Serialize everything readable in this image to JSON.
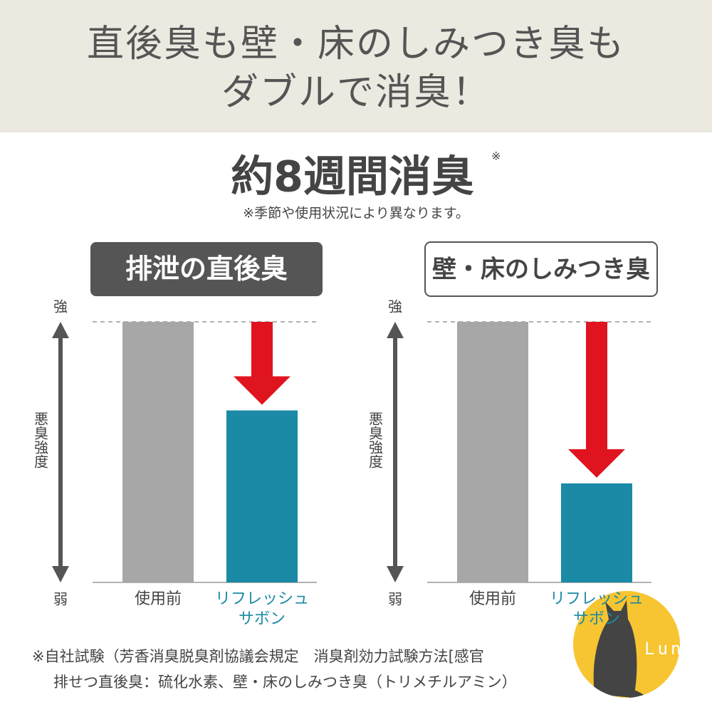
{
  "header": {
    "title": "直後臭も壁・床のしみつき臭も\nダブルで消臭！"
  },
  "headline": {
    "text": "約8週間消臭",
    "mark": "※",
    "note": "※季節や使用状況により異なります。"
  },
  "chart_data": [
    {
      "type": "bar",
      "title": "排泄の直後臭",
      "title_style": "dark",
      "categories": [
        "使用前",
        "リフレッシュ\nサボン"
      ],
      "values": [
        100,
        66
      ],
      "colors": [
        "#a7a7a7",
        "#1b8aa6"
      ],
      "ylabel": "悪臭強度",
      "ylim": [
        0,
        100
      ],
      "yticks": [
        {
          "value": 0,
          "label": "弱"
        },
        {
          "value": 100,
          "label": "強"
        }
      ]
    },
    {
      "type": "bar",
      "title": "壁・床のしみつき臭",
      "title_style": "light",
      "categories": [
        "使用前",
        "リフレッシュ\nサボン"
      ],
      "values": [
        100,
        38
      ],
      "colors": [
        "#a7a7a7",
        "#1b8aa6"
      ],
      "ylabel": "悪臭強度",
      "ylim": [
        0,
        100
      ],
      "yticks": [
        {
          "value": 0,
          "label": "弱"
        },
        {
          "value": 100,
          "label": "強"
        }
      ]
    }
  ],
  "footnote": {
    "lines": [
      "※自社試験（芳香消臭脱臭剤協議会規定　消臭剤効力試験方法[感官",
      "排せつ直後臭：硫化水素、壁・床のしみつき臭（トリメチルアミン）"
    ]
  },
  "watermark": {
    "text": "Luna"
  }
}
